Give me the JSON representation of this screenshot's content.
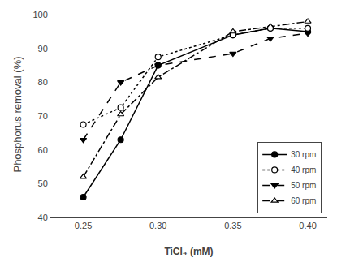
{
  "chart_data": {
    "type": "line",
    "xlabel": "TiCl₄ (mM)",
    "ylabel": "Phosphorus removal (%)",
    "x": [
      0.25,
      0.275,
      0.3,
      0.35,
      0.375,
      0.4
    ],
    "series": [
      {
        "name": "30 rpm",
        "color": "#000000",
        "marker": "circle",
        "line_style": "solid",
        "values": [
          46,
          63,
          85,
          94,
          96,
          95
        ]
      },
      {
        "name": "40 rpm",
        "color": "#000000",
        "marker": "circle-open",
        "line_style": "dot",
        "values": [
          67.5,
          72.5,
          87.5,
          94,
          96,
          96
        ]
      },
      {
        "name": "50 rpm",
        "color": "#000000",
        "marker": "triangle-down",
        "line_style": "dash",
        "values": [
          63,
          80,
          85,
          88.5,
          93,
          94.5
        ]
      },
      {
        "name": "60 rpm",
        "color": "#000000",
        "marker": "triangle-up-open",
        "line_style": "dashdot",
        "values": [
          52,
          70.5,
          81.5,
          95,
          96.5,
          98
        ]
      }
    ],
    "xlim": [
      0.228,
      0.413
    ],
    "xticks": [
      0.25,
      {
        "value": 0.3,
        "label": "0.30"
      },
      0.35,
      {
        "value": 0.4,
        "label": "0.40"
      }
    ],
    "ylim": [
      40,
      101
    ],
    "yticks": [
      40,
      50,
      60,
      70,
      80,
      90,
      100
    ],
    "grid": false,
    "legend": "lower right"
  }
}
